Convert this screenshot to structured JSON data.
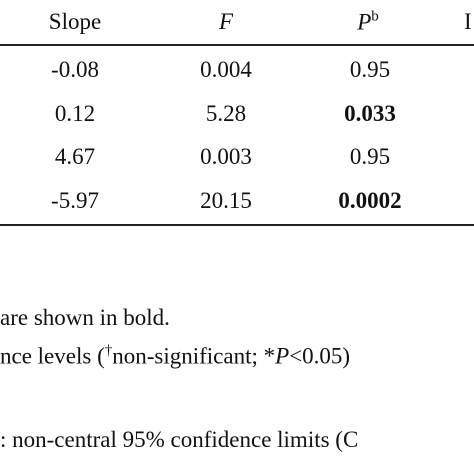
{
  "table": {
    "header": {
      "slope": "Slope",
      "f": "F",
      "p": "P",
      "p_sup": "b",
      "cut": "I"
    },
    "rows": [
      [
        "-0.08",
        "0.004",
        "0.95"
      ],
      [
        "0.12",
        "5.28",
        "0.033"
      ],
      [
        "4.67",
        "0.003",
        "0.95"
      ],
      [
        "-5.97",
        "20.15",
        "0.0002"
      ]
    ],
    "p_bold": [
      false,
      true,
      false,
      true
    ]
  },
  "notes": {
    "note1": "are shown in bold.",
    "note2": [
      "nce levels (",
      "†",
      "non-significant; *",
      "P",
      "<0.05)"
    ],
    "note3": ": non-central 95% confidence limits (C"
  }
}
